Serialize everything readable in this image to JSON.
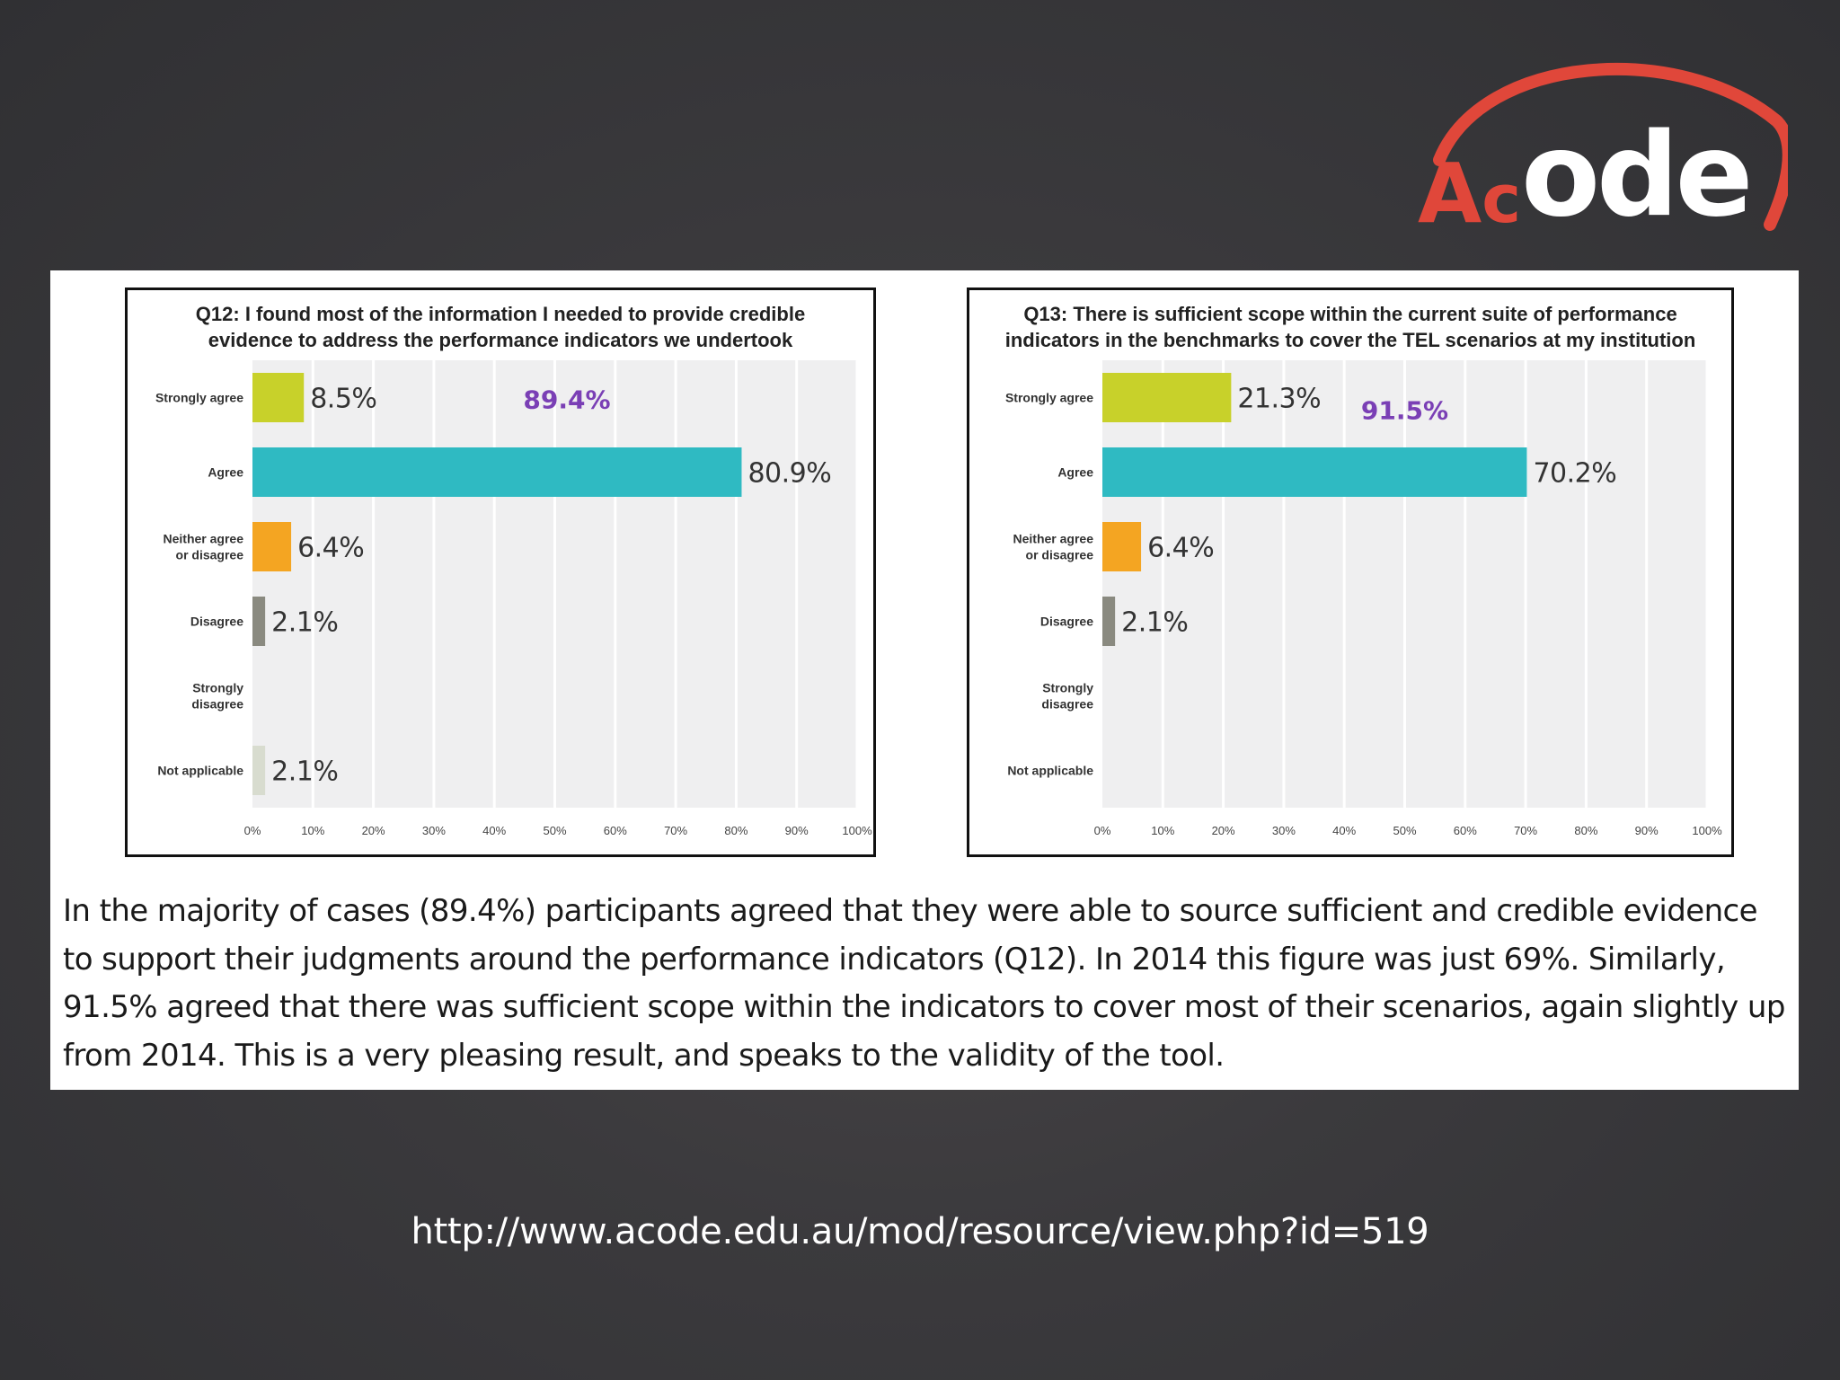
{
  "logo": {
    "letter_a": "A",
    "letter_c": "c",
    "letters_ode": "ode",
    "arc_color": "#e0473a"
  },
  "colors": {
    "strongly_agree": "#c8d12a",
    "agree": "#2fbac2",
    "neither": "#f4a522",
    "disagree": "#8a8a80",
    "strongly_disagree": "#d8dccf",
    "not_applicable": "#d8dccf",
    "highlight": "#7a3fb5",
    "plot_bg": "#efeff0"
  },
  "chart_data": [
    {
      "type": "bar",
      "orientation": "horizontal",
      "title": "Q12: I found most of the information I needed to provide credible\nevidence to address the performance indicators we undertook",
      "categories": [
        "Strongly agree",
        "Agree",
        "Neither agree or disagree",
        "Disagree",
        "Strongly disagree",
        "Not applicable"
      ],
      "category_lines": [
        [
          "Strongly agree"
        ],
        [
          "Agree"
        ],
        [
          "Neither agree",
          "or disagree"
        ],
        [
          "Disagree"
        ],
        [
          "Strongly",
          "disagree"
        ],
        [
          "Not applicable"
        ]
      ],
      "values": [
        8.5,
        80.9,
        6.4,
        2.1,
        0,
        2.1
      ],
      "value_labels": [
        "8.5%",
        "80.9%",
        "6.4%",
        "2.1%",
        "",
        "2.1%"
      ],
      "xticks": [
        "0%",
        "10%",
        "20%",
        "30%",
        "40%",
        "50%",
        "60%",
        "70%",
        "80%",
        "90%",
        "100%"
      ],
      "xlim": [
        0,
        100
      ],
      "grid": true,
      "annotation": {
        "text": "89.4%",
        "x": 52,
        "category": "Strongly agree"
      }
    },
    {
      "type": "bar",
      "orientation": "horizontal",
      "title": "Q13: There is sufficient scope within the current suite of performance\nindicators in the benchmarks to cover the TEL scenarios at my institution",
      "categories": [
        "Strongly agree",
        "Agree",
        "Neither agree or disagree",
        "Disagree",
        "Strongly disagree",
        "Not applicable"
      ],
      "category_lines": [
        [
          "Strongly agree"
        ],
        [
          "Agree"
        ],
        [
          "Neither agree",
          "or disagree"
        ],
        [
          "Disagree"
        ],
        [
          "Strongly",
          "disagree"
        ],
        [
          "Not applicable"
        ]
      ],
      "values": [
        21.3,
        70.2,
        6.4,
        2.1,
        0,
        0
      ],
      "value_labels": [
        "21.3%",
        "70.2%",
        "6.4%",
        "2.1%",
        "",
        ""
      ],
      "xticks": [
        "0%",
        "10%",
        "20%",
        "30%",
        "40%",
        "50%",
        "60%",
        "70%",
        "80%",
        "90%",
        "100%"
      ],
      "xlim": [
        0,
        100
      ],
      "grid": true,
      "annotation": {
        "text": "91.5%",
        "x": 50,
        "category": "Strongly agree"
      }
    }
  ],
  "description": "In the majority of cases (89.4%) participants agreed that they were able to source sufficient and credible evidence to support their judgments around the performance indicators (Q12). In 2014 this figure was just 69%. Similarly, 91.5% agreed that there was sufficient scope within the indicators to cover most of their scenarios, again slightly up from 2014. This is a very pleasing result, and speaks to the validity of the tool.",
  "url": "http://www.acode.edu.au/mod/resource/view.php?id=519"
}
